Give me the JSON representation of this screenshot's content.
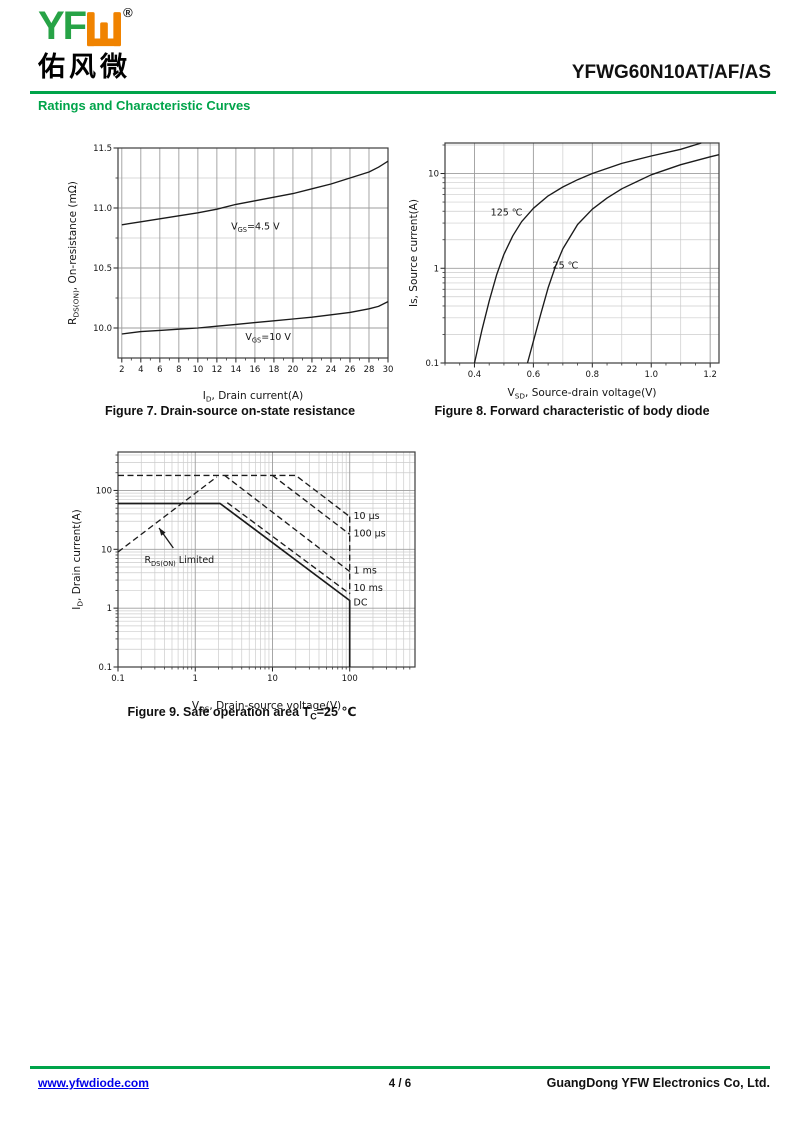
{
  "header": {
    "logo": {
      "text": "YF",
      "glyph": "shan-mark",
      "registered": "®",
      "cjk": "佑风微"
    },
    "part_number": "YFWG60N10AT/AF/AS",
    "section_title": "Ratings and Characteristic Curves"
  },
  "footer": {
    "website": "www.yfwdiode.com",
    "page": "4 / 6",
    "company": "GuangDong YFW Electronics Co, Ltd."
  },
  "colors": {
    "brand_green": "#00A44A",
    "brand_orange": "#F08300",
    "link_blue": "#0000E8",
    "curve_black": "#1b1b1b"
  },
  "chart_data": [
    {
      "id": "fig7",
      "type": "line",
      "caption": "Figure 7. Drain-source on-state resistance",
      "xlabel": "I_{D}, Drain current(A)",
      "ylabel": "R_{DS(ON)}, On-resistance (mΩ)",
      "xaxis": {
        "scale": "linear",
        "min": 1.6,
        "max": 30,
        "minor_step": 1,
        "ticks": [
          {
            "v": 2,
            "label": "2"
          },
          {
            "v": 4,
            "label": "4"
          },
          {
            "v": 6,
            "label": "6"
          },
          {
            "v": 8,
            "label": "8"
          },
          {
            "v": 10,
            "label": "10"
          },
          {
            "v": 12,
            "label": "12"
          },
          {
            "v": 14,
            "label": "14"
          },
          {
            "v": 16,
            "label": "16"
          },
          {
            "v": 18,
            "label": "18"
          },
          {
            "v": 20,
            "label": "20"
          },
          {
            "v": 22,
            "label": "22"
          },
          {
            "v": 24,
            "label": "24"
          },
          {
            "v": 26,
            "label": "26"
          },
          {
            "v": 28,
            "label": "28"
          },
          {
            "v": 30,
            "label": "30"
          }
        ]
      },
      "yaxis": {
        "scale": "linear",
        "min": 9.75,
        "max": 11.5,
        "minor": [
          10.25,
          10.75,
          11.25
        ],
        "ticks": [
          {
            "v": 10,
            "label": "10.0"
          },
          {
            "v": 10.5,
            "label": "10.5"
          },
          {
            "v": 11,
            "label": "11.0"
          },
          {
            "v": 11.5,
            "label": "11.5"
          }
        ]
      },
      "series": [
        {
          "name": "VGS=4.5V",
          "dash": false,
          "points": [
            [
              2,
              10.86
            ],
            [
              4,
              10.885
            ],
            [
              6,
              10.91
            ],
            [
              8,
              10.935
            ],
            [
              10,
              10.96
            ],
            [
              12,
              10.99
            ],
            [
              14,
              11.03
            ],
            [
              16,
              11.06
            ],
            [
              18,
              11.09
            ],
            [
              20,
              11.12
            ],
            [
              22,
              11.16
            ],
            [
              24,
              11.2
            ],
            [
              26,
              11.25
            ],
            [
              28,
              11.3
            ],
            [
              29,
              11.34
            ],
            [
              30,
              11.39
            ]
          ]
        },
        {
          "name": "VGS=10V",
          "dash": false,
          "points": [
            [
              2,
              9.95
            ],
            [
              4,
              9.97
            ],
            [
              6,
              9.98
            ],
            [
              8,
              9.99
            ],
            [
              10,
              10.0
            ],
            [
              12,
              10.015
            ],
            [
              14,
              10.03
            ],
            [
              16,
              10.045
            ],
            [
              18,
              10.06
            ],
            [
              20,
              10.075
            ],
            [
              22,
              10.09
            ],
            [
              24,
              10.11
            ],
            [
              26,
              10.13
            ],
            [
              28,
              10.16
            ],
            [
              29,
              10.18
            ],
            [
              30,
              10.22
            ]
          ]
        }
      ],
      "annotations": [
        {
          "x": 13.5,
          "y": 10.82,
          "text": "V_{GS}=4.5 V",
          "anchor": "start"
        },
        {
          "x": 15,
          "y": 9.9,
          "text": "V_{GS}=10 V",
          "anchor": "start"
        }
      ]
    },
    {
      "id": "fig8",
      "type": "line",
      "caption": "Figure 8. Forward characteristic of body diode",
      "xlabel": "V_{SD}, Source-drain voltage(V)",
      "ylabel": "Is, Source current(A)",
      "xaxis": {
        "scale": "linear",
        "min": 0.3,
        "max": 1.23,
        "minor": [
          0.5,
          0.7,
          0.9,
          1.1
        ],
        "minor_step": 0.05,
        "ticks": [
          {
            "v": 0.4,
            "label": "0.4"
          },
          {
            "v": 0.6,
            "label": "0.6"
          },
          {
            "v": 0.8,
            "label": "0.8"
          },
          {
            "v": 1.0,
            "label": "1.0"
          },
          {
            "v": 1.2,
            "label": "1.2"
          }
        ]
      },
      "yaxis": {
        "scale": "log",
        "min": 0.1,
        "max": 21,
        "ticks": [
          {
            "v": 0.1,
            "label": "0.1"
          },
          {
            "v": 1,
            "label": "1"
          },
          {
            "v": 10,
            "label": "10"
          }
        ]
      },
      "series": [
        {
          "name": "125 ℃",
          "dash": false,
          "points": [
            [
              0.4,
              0.1
            ],
            [
              0.425,
              0.22
            ],
            [
              0.45,
              0.45
            ],
            [
              0.475,
              0.85
            ],
            [
              0.5,
              1.4
            ],
            [
              0.53,
              2.2
            ],
            [
              0.56,
              3.1
            ],
            [
              0.6,
              4.3
            ],
            [
              0.65,
              5.8
            ],
            [
              0.7,
              7.2
            ],
            [
              0.75,
              8.6
            ],
            [
              0.8,
              10
            ],
            [
              0.9,
              12.8
            ],
            [
              1.0,
              15.3
            ],
            [
              1.1,
              18
            ],
            [
              1.17,
              21
            ]
          ]
        },
        {
          "name": "25 ℃",
          "dash": false,
          "points": [
            [
              0.58,
              0.1
            ],
            [
              0.6,
              0.17
            ],
            [
              0.625,
              0.33
            ],
            [
              0.65,
              0.62
            ],
            [
              0.675,
              1.05
            ],
            [
              0.7,
              1.6
            ],
            [
              0.75,
              2.9
            ],
            [
              0.8,
              4.2
            ],
            [
              0.85,
              5.5
            ],
            [
              0.9,
              6.9
            ],
            [
              1.0,
              9.7
            ],
            [
              1.1,
              12.4
            ],
            [
              1.2,
              15
            ],
            [
              1.23,
              15.8
            ]
          ]
        }
      ],
      "annotations": [
        {
          "x": 0.455,
          "y": 3.6,
          "text": "125 ℃",
          "anchor": "start"
        },
        {
          "x": 0.665,
          "y": 1.0,
          "text": "25 ℃",
          "anchor": "start"
        }
      ]
    },
    {
      "id": "fig9",
      "type": "line",
      "caption": "Figure 9. Safe operation area T_{C}=25 ℃",
      "xlabel": "V_{DS}, Drain-source voltage(V)",
      "ylabel": "I_{D}, Drain current(A)",
      "xaxis": {
        "scale": "log",
        "min": 0.1,
        "max": 700,
        "ticks": [
          {
            "v": 0.1,
            "label": "0.1"
          },
          {
            "v": 1,
            "label": "1"
          },
          {
            "v": 10,
            "label": "10"
          },
          {
            "v": 100,
            "label": "100"
          }
        ]
      },
      "yaxis": {
        "scale": "log",
        "min": 0.1,
        "max": 450,
        "ticks": [
          {
            "v": 0.1,
            "label": "0.1"
          },
          {
            "v": 1,
            "label": "1"
          },
          {
            "v": 10,
            "label": "10"
          },
          {
            "v": 100,
            "label": "100"
          }
        ]
      },
      "series": [
        {
          "name": "RDS(ON) limited",
          "dash": true,
          "points": [
            [
              0.1,
              9
            ],
            [
              1.9,
              170
            ]
          ]
        },
        {
          "name": "10 µs",
          "dash": true,
          "points": [
            [
              0.1,
              180
            ],
            [
              20,
              180
            ],
            [
              100,
              36
            ]
          ]
        },
        {
          "name": "100 µs",
          "dash": true,
          "points": [
            [
              10,
              180
            ],
            [
              100,
              18
            ]
          ]
        },
        {
          "name": "1 ms",
          "dash": true,
          "points": [
            [
              2.4,
              180
            ],
            [
              100,
              4.2
            ]
          ]
        },
        {
          "name": "10 ms",
          "dash": true,
          "points": [
            [
              2.6,
              62
            ],
            [
              100,
              1.75
            ]
          ]
        },
        {
          "name": "voltage limit (pulsed)",
          "dash": true,
          "points": [
            [
              100,
              36
            ],
            [
              100,
              1.75
            ]
          ]
        },
        {
          "name": "DC",
          "dash": false,
          "width": 1.7,
          "points": [
            [
              0.1,
              60
            ],
            [
              2.1,
              60
            ],
            [
              100,
              1.35
            ],
            [
              100,
              0.1
            ]
          ]
        }
      ],
      "annotations": [
        {
          "x": 112,
          "y": 33,
          "text": "10 µs",
          "anchor": "start"
        },
        {
          "x": 112,
          "y": 16.5,
          "text": "100 µs",
          "anchor": "start"
        },
        {
          "x": 112,
          "y": 3.9,
          "text": "1 ms",
          "anchor": "start"
        },
        {
          "x": 112,
          "y": 1.95,
          "text": "10 ms",
          "anchor": "start"
        },
        {
          "x": 112,
          "y": 1.1,
          "text": "DC",
          "anchor": "start"
        },
        {
          "x": 0.22,
          "y": 5.8,
          "text": "R_{DS(ON)} Limited",
          "anchor": "start"
        }
      ],
      "arrows": [
        {
          "from": [
            0.52,
            10.5
          ],
          "to": [
            0.34,
            23
          ]
        }
      ]
    }
  ]
}
